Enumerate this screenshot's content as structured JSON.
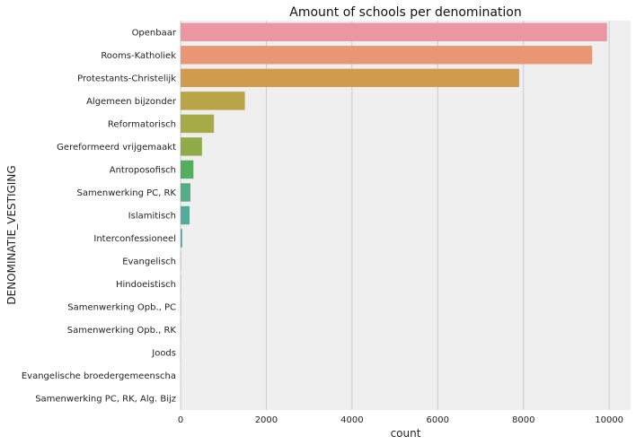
{
  "chart_data": {
    "type": "bar",
    "orientation": "horizontal",
    "title": "Amount of schools per denomination",
    "xlabel": "count",
    "ylabel": "DENOMINATIE_VESTIGING",
    "xlim": [
      0,
      10500
    ],
    "xticks": [
      "0",
      "2000",
      "4000",
      "6000",
      "8000",
      "10000"
    ],
    "grid": "vertical",
    "categories": [
      "Openbaar",
      "Rooms-Katholiek",
      "Protestants-Christelijk",
      "Algemeen bijzonder",
      "Reformatorisch",
      "Gereformeerd vrijgemaakt",
      "Antroposofisch",
      "Samenwerking PC, RK",
      "Islamitisch",
      "Interconfessioneel",
      "Evangelisch",
      "Hindoeistisch",
      "Samenwerking Opb., PC",
      "Samenwerking Opb., RK",
      "Joods",
      "Evangelische broedergemeenscha",
      "Samenwerking PC, RK, Alg. Bijz"
    ],
    "values": [
      9950,
      9600,
      7900,
      1500,
      780,
      500,
      300,
      230,
      210,
      40,
      8,
      6,
      5,
      4,
      3,
      2,
      1
    ],
    "colors": [
      "#ea96a3",
      "#e99675",
      "#d29c4e",
      "#b9a547",
      "#a6ab47",
      "#8fac48",
      "#55ae5d",
      "#52ae87",
      "#53ac9b",
      "#55aaab",
      "#57a7b6",
      "#5aa4c4",
      "#6a9fd6",
      "#a091dc",
      "#c88ad6",
      "#e28bc9",
      "#e990b6"
    ],
    "background": "#efefef",
    "grid_color": "#cbcbcb"
  }
}
